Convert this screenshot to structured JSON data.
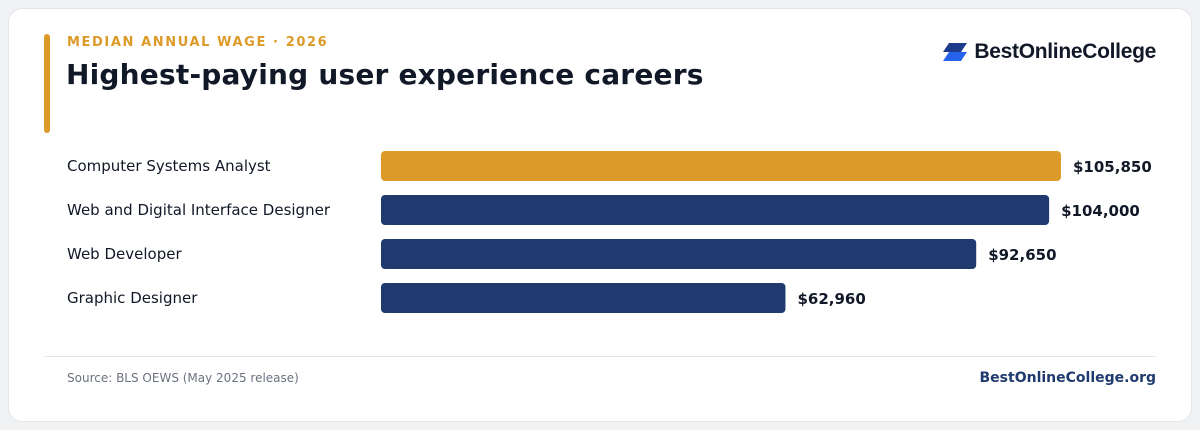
{
  "header": {
    "eyebrow": "MEDIAN ANNUAL WAGE · 2026",
    "title": "Highest-paying user experience careers"
  },
  "brand": {
    "logo_text": "BestOnlineCollege",
    "site": "BestOnlineCollege.org",
    "logo_icon": "stacked-parallelogram-icon"
  },
  "footer": {
    "source": "Source: BLS OEWS (May 2025 release)"
  },
  "colors": {
    "accent": "#dc9a28",
    "navy": "#1e3a6e",
    "text": "#111827",
    "muted": "#6b7280",
    "logo_blue": "#2563eb"
  },
  "chart_data": {
    "type": "bar",
    "orientation": "horizontal",
    "categories": [
      "Computer Systems Analyst",
      "Web and Digital Interface Designer",
      "Web Developer",
      "Graphic Designer"
    ],
    "values": [
      105850,
      104000,
      92650,
      62960
    ],
    "value_labels": [
      "$105,850",
      "$104,000",
      "$92,650",
      "$62,960"
    ],
    "highlight_index": 0,
    "xlim": [
      0,
      105850
    ],
    "grid": false,
    "legend": "none"
  }
}
